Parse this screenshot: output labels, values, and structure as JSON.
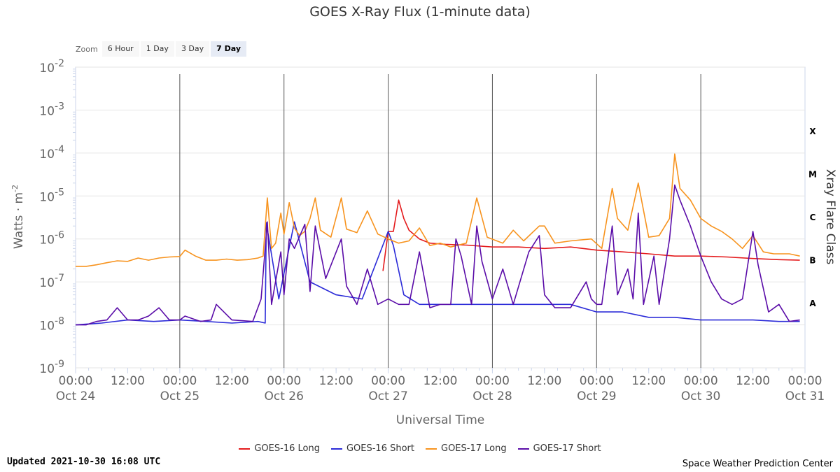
{
  "chart_data": {
    "type": "line",
    "title": "GOES X-Ray Flux (1-minute data)",
    "xlabel": "Universal Time",
    "ylabel": "Watts · m",
    "ylabel_superscript": "-2",
    "y2label": "Xray Flare Class",
    "y_scale": "log",
    "ylim": [
      1e-09,
      0.01
    ],
    "y_ticks": [
      {
        "base": "10",
        "exp": "-2"
      },
      {
        "base": "10",
        "exp": "-3"
      },
      {
        "base": "10",
        "exp": "-4"
      },
      {
        "base": "10",
        "exp": "-5"
      },
      {
        "base": "10",
        "exp": "-6"
      },
      {
        "base": "10",
        "exp": "-7"
      },
      {
        "base": "10",
        "exp": "-8"
      },
      {
        "base": "10",
        "exp": "-9"
      }
    ],
    "x_range_days": [
      "2021-10-24T00:00",
      "2021-10-31T00:00"
    ],
    "x_ticks": [
      {
        "time": "00:00",
        "date": "Oct 24"
      },
      {
        "time": "12:00",
        "date": ""
      },
      {
        "time": "00:00",
        "date": "Oct 25"
      },
      {
        "time": "12:00",
        "date": ""
      },
      {
        "time": "00:00",
        "date": "Oct 26"
      },
      {
        "time": "12:00",
        "date": ""
      },
      {
        "time": "00:00",
        "date": "Oct 27"
      },
      {
        "time": "12:00",
        "date": ""
      },
      {
        "time": "00:00",
        "date": "Oct 28"
      },
      {
        "time": "12:00",
        "date": ""
      },
      {
        "time": "00:00",
        "date": "Oct 29"
      },
      {
        "time": "12:00",
        "date": ""
      },
      {
        "time": "00:00",
        "date": "Oct 30"
      },
      {
        "time": "12:00",
        "date": ""
      },
      {
        "time": "00:00",
        "date": "Oct 31"
      }
    ],
    "flare_classes": [
      {
        "label": "X",
        "min": 0.0001
      },
      {
        "label": "M",
        "min": 1e-05
      },
      {
        "label": "C",
        "min": 1e-06
      },
      {
        "label": "B",
        "min": 1e-07
      },
      {
        "label": "A",
        "min": 1e-08
      }
    ],
    "grid": true,
    "legend_position": "bottom",
    "series": [
      {
        "name": "GOES-16 Long",
        "color": "#e41a1c",
        "points": [
          [
            2.95,
            1.8e-07
          ],
          [
            3.0,
            1.5e-06
          ],
          [
            3.05,
            1.5e-06
          ],
          [
            3.1,
            8e-06
          ],
          [
            3.15,
            3e-06
          ],
          [
            3.2,
            1.6e-06
          ],
          [
            3.3,
            1e-06
          ],
          [
            3.4,
            8e-07
          ],
          [
            3.55,
            7.5e-07
          ],
          [
            3.75,
            7.2e-07
          ],
          [
            4.0,
            6.5e-07
          ],
          [
            4.25,
            6.5e-07
          ],
          [
            4.5,
            6e-07
          ],
          [
            4.75,
            6.5e-07
          ],
          [
            5.0,
            5.5e-07
          ],
          [
            5.25,
            5e-07
          ],
          [
            5.5,
            4.5e-07
          ],
          [
            5.75,
            4e-07
          ],
          [
            6.0,
            4e-07
          ],
          [
            6.25,
            3.8e-07
          ],
          [
            6.5,
            3.5e-07
          ],
          [
            6.75,
            3.3e-07
          ],
          [
            6.95,
            3.2e-07
          ]
        ]
      },
      {
        "name": "GOES-16 Short",
        "color": "#2b2bd8",
        "points": [
          [
            0.0,
            1e-08
          ],
          [
            0.25,
            1.1e-08
          ],
          [
            0.5,
            1.3e-08
          ],
          [
            0.75,
            1.2e-08
          ],
          [
            1.0,
            1.3e-08
          ],
          [
            1.25,
            1.2e-08
          ],
          [
            1.5,
            1.1e-08
          ],
          [
            1.75,
            1.2e-08
          ],
          [
            1.82,
            1.1e-08
          ],
          [
            1.83,
            2.4e-06
          ],
          [
            1.95,
            4e-08
          ],
          [
            2.1,
            2.5e-06
          ],
          [
            2.25,
            1e-07
          ],
          [
            2.5,
            5e-08
          ],
          [
            2.75,
            4e-08
          ],
          [
            3.0,
            1.5e-06
          ],
          [
            3.05,
            7e-07
          ],
          [
            3.15,
            5e-08
          ],
          [
            3.3,
            3e-08
          ],
          [
            3.5,
            3e-08
          ],
          [
            3.75,
            3e-08
          ],
          [
            4.0,
            3e-08
          ],
          [
            4.25,
            3e-08
          ],
          [
            4.5,
            3e-08
          ],
          [
            4.75,
            3e-08
          ],
          [
            5.0,
            2e-08
          ],
          [
            5.25,
            2e-08
          ],
          [
            5.5,
            1.5e-08
          ],
          [
            5.75,
            1.5e-08
          ],
          [
            6.0,
            1.3e-08
          ],
          [
            6.25,
            1.3e-08
          ],
          [
            6.5,
            1.3e-08
          ],
          [
            6.75,
            1.2e-08
          ],
          [
            6.95,
            1.2e-08
          ]
        ]
      },
      {
        "name": "GOES-17 Long",
        "color": "#f7931e",
        "points": [
          [
            0.0,
            2.3e-07
          ],
          [
            0.1,
            2.3e-07
          ],
          [
            0.2,
            2.5e-07
          ],
          [
            0.3,
            2.8e-07
          ],
          [
            0.4,
            3.1e-07
          ],
          [
            0.5,
            3e-07
          ],
          [
            0.6,
            3.6e-07
          ],
          [
            0.7,
            3.2e-07
          ],
          [
            0.8,
            3.6e-07
          ],
          [
            0.9,
            3.8e-07
          ],
          [
            1.0,
            3.9e-07
          ],
          [
            1.05,
            5.5e-07
          ],
          [
            1.15,
            4e-07
          ],
          [
            1.25,
            3.2e-07
          ],
          [
            1.35,
            3.2e-07
          ],
          [
            1.45,
            3.4e-07
          ],
          [
            1.55,
            3.2e-07
          ],
          [
            1.65,
            3.3e-07
          ],
          [
            1.75,
            3.6e-07
          ],
          [
            1.8,
            4e-07
          ],
          [
            1.84,
            9e-06
          ],
          [
            1.88,
            6e-07
          ],
          [
            1.92,
            8e-07
          ],
          [
            1.97,
            4e-06
          ],
          [
            2.0,
            1.3e-06
          ],
          [
            2.05,
            7e-06
          ],
          [
            2.1,
            1.8e-06
          ],
          [
            2.15,
            1.2e-06
          ],
          [
            2.2,
            1.5e-06
          ],
          [
            2.25,
            3e-06
          ],
          [
            2.3,
            9e-06
          ],
          [
            2.35,
            1.6e-06
          ],
          [
            2.45,
            1.1e-06
          ],
          [
            2.55,
            9e-06
          ],
          [
            2.6,
            1.7e-06
          ],
          [
            2.7,
            1.4e-06
          ],
          [
            2.8,
            4.5e-06
          ],
          [
            2.9,
            1.3e-06
          ],
          [
            3.0,
            1e-06
          ],
          [
            3.1,
            8e-07
          ],
          [
            3.2,
            9e-07
          ],
          [
            3.3,
            1.8e-06
          ],
          [
            3.4,
            7e-07
          ],
          [
            3.5,
            8e-07
          ],
          [
            3.6,
            6.5e-07
          ],
          [
            3.75,
            8e-07
          ],
          [
            3.85,
            9e-06
          ],
          [
            3.95,
            1.1e-06
          ],
          [
            4.1,
            8e-07
          ],
          [
            4.2,
            1.6e-06
          ],
          [
            4.3,
            9e-07
          ],
          [
            4.45,
            2e-06
          ],
          [
            4.5,
            2e-06
          ],
          [
            4.6,
            8e-07
          ],
          [
            4.75,
            9e-07
          ],
          [
            4.95,
            1e-06
          ],
          [
            5.05,
            6e-07
          ],
          [
            5.15,
            1.5e-05
          ],
          [
            5.2,
            3e-06
          ],
          [
            5.3,
            1.6e-06
          ],
          [
            5.4,
            2e-05
          ],
          [
            5.5,
            1.1e-06
          ],
          [
            5.6,
            1.2e-06
          ],
          [
            5.7,
            3e-06
          ],
          [
            5.75,
            9.5e-05
          ],
          [
            5.8,
            1.5e-05
          ],
          [
            5.9,
            8e-06
          ],
          [
            6.0,
            3e-06
          ],
          [
            6.1,
            2e-06
          ],
          [
            6.2,
            1.5e-06
          ],
          [
            6.3,
            1e-06
          ],
          [
            6.4,
            6e-07
          ],
          [
            6.5,
            1.2e-06
          ],
          [
            6.6,
            5e-07
          ],
          [
            6.7,
            4.5e-07
          ],
          [
            6.85,
            4.5e-07
          ],
          [
            6.95,
            4e-07
          ]
        ]
      },
      {
        "name": "GOES-17 Short",
        "color": "#5a0ca8",
        "points": [
          [
            0.0,
            1e-08
          ],
          [
            0.1,
            1e-08
          ],
          [
            0.2,
            1.2e-08
          ],
          [
            0.3,
            1.3e-08
          ],
          [
            0.4,
            2.5e-08
          ],
          [
            0.5,
            1.3e-08
          ],
          [
            0.6,
            1.3e-08
          ],
          [
            0.7,
            1.6e-08
          ],
          [
            0.8,
            2.5e-08
          ],
          [
            0.9,
            1.3e-08
          ],
          [
            1.0,
            1.3e-08
          ],
          [
            1.05,
            1.6e-08
          ],
          [
            1.2,
            1.2e-08
          ],
          [
            1.3,
            1.3e-08
          ],
          [
            1.35,
            3e-08
          ],
          [
            1.5,
            1.3e-08
          ],
          [
            1.7,
            1.2e-08
          ],
          [
            1.78,
            4e-08
          ],
          [
            1.84,
            2.5e-06
          ],
          [
            1.88,
            3e-08
          ],
          [
            1.97,
            5e-07
          ],
          [
            2.0,
            5e-08
          ],
          [
            2.05,
            1e-06
          ],
          [
            2.1,
            6e-07
          ],
          [
            2.2,
            2.2e-06
          ],
          [
            2.25,
            6e-08
          ],
          [
            2.3,
            2e-06
          ],
          [
            2.4,
            1.2e-07
          ],
          [
            2.55,
            1e-06
          ],
          [
            2.6,
            8e-08
          ],
          [
            2.7,
            3e-08
          ],
          [
            2.8,
            2e-07
          ],
          [
            2.9,
            3e-08
          ],
          [
            3.0,
            4e-08
          ],
          [
            3.1,
            3e-08
          ],
          [
            3.2,
            3e-08
          ],
          [
            3.3,
            5e-07
          ],
          [
            3.4,
            2.5e-08
          ],
          [
            3.5,
            3e-08
          ],
          [
            3.6,
            3e-08
          ],
          [
            3.65,
            1e-06
          ],
          [
            3.7,
            4e-07
          ],
          [
            3.8,
            3e-08
          ],
          [
            3.85,
            2e-06
          ],
          [
            3.9,
            3e-07
          ],
          [
            4.0,
            4e-08
          ],
          [
            4.1,
            2e-07
          ],
          [
            4.2,
            3e-08
          ],
          [
            4.35,
            5e-07
          ],
          [
            4.45,
            1.2e-06
          ],
          [
            4.5,
            5e-08
          ],
          [
            4.6,
            2.5e-08
          ],
          [
            4.75,
            2.5e-08
          ],
          [
            4.9,
            1e-07
          ],
          [
            4.95,
            4e-08
          ],
          [
            5.0,
            3e-08
          ],
          [
            5.05,
            3e-08
          ],
          [
            5.15,
            2e-06
          ],
          [
            5.2,
            5e-08
          ],
          [
            5.3,
            2e-07
          ],
          [
            5.35,
            4e-08
          ],
          [
            5.4,
            4e-06
          ],
          [
            5.45,
            3e-08
          ],
          [
            5.55,
            4e-07
          ],
          [
            5.6,
            3e-08
          ],
          [
            5.7,
            1e-06
          ],
          [
            5.75,
            1.8e-05
          ],
          [
            5.8,
            8e-06
          ],
          [
            5.9,
            2e-06
          ],
          [
            6.0,
            4e-07
          ],
          [
            6.1,
            1e-07
          ],
          [
            6.2,
            4e-08
          ],
          [
            6.3,
            3e-08
          ],
          [
            6.4,
            4e-08
          ],
          [
            6.5,
            1.5e-06
          ],
          [
            6.55,
            2.5e-07
          ],
          [
            6.65,
            2e-08
          ],
          [
            6.75,
            3e-08
          ],
          [
            6.85,
            1.2e-08
          ],
          [
            6.95,
            1.3e-08
          ]
        ]
      }
    ]
  },
  "toolbar": {
    "zoom_label": "Zoom",
    "buttons": [
      {
        "label": "6 Hour",
        "selected": false
      },
      {
        "label": "1 Day",
        "selected": false
      },
      {
        "label": "3 Day",
        "selected": false
      },
      {
        "label": "7 Day",
        "selected": true
      }
    ]
  },
  "footer": {
    "updated": "Updated 2021-10-30 16:08 UTC",
    "credit": "Space Weather Prediction Center"
  }
}
